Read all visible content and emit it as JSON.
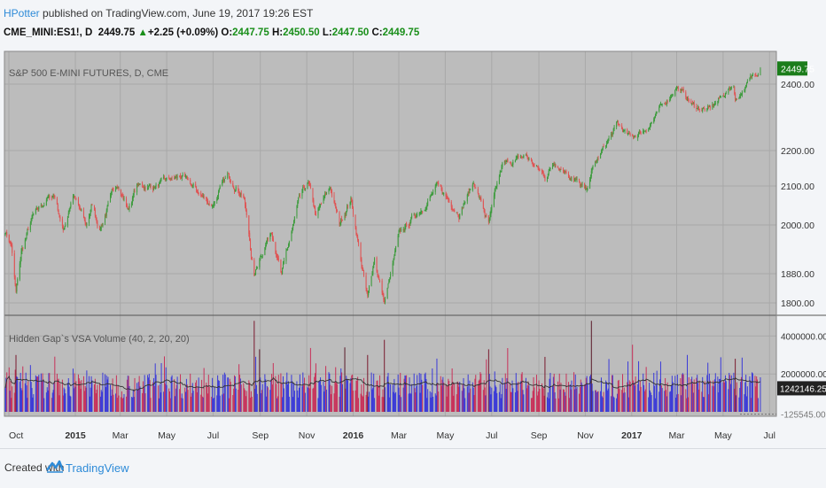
{
  "header": {
    "author": "HPotter",
    "published": "published on TradingView.com, June 19, 2017 19:26 EST",
    "symbol": "CME_MINI:ES1!, D",
    "last": "2449.75",
    "change": "+2.25 (+0.09%)",
    "o_label": "O:",
    "o": "2447.75",
    "h_label": "H:",
    "h": "2450.50",
    "l_label": "L:",
    "l": "2447.50",
    "c_label": "C:",
    "c": "2449.75"
  },
  "colors": {
    "up": "#3c9b3c",
    "down": "#e05252",
    "vol_up": "#3a3ad8",
    "vol_down": "#c8325a",
    "pane_bg": "#bcbcbc",
    "grid": "#a9a9a9",
    "last_tag": "#1b7d1b"
  },
  "footer": {
    "created": "Created with",
    "brand": "TradingView",
    "icon": "tradingview-logo-icon"
  },
  "chart_data": [
    {
      "type": "candlestick",
      "title": "S&P 500 E-MINI FUTURES, D, CME",
      "ylim": [
        1780,
        2470
      ],
      "y_ticks": [
        "2400.00",
        "2200.00",
        "2100.00",
        "2000.00",
        "1880.00",
        "1800.00"
      ],
      "last_price": "2449.75",
      "x_ticks": [
        "Oct",
        "2015",
        "Mar",
        "May",
        "Jul",
        "Sep",
        "Nov",
        "2016",
        "Mar",
        "May",
        "Jul",
        "Sep",
        "Nov",
        "2017",
        "Mar",
        "May",
        "Jul"
      ],
      "x_range": [
        "2014-10-01",
        "2017-07-10"
      ],
      "anchors": [
        [
          "2014-10-01",
          1985
        ],
        [
          "2014-10-09",
          1950
        ],
        [
          "2014-10-15",
          1825
        ],
        [
          "2014-10-22",
          1930
        ],
        [
          "2014-11-05",
          2015
        ],
        [
          "2014-11-25",
          2065
        ],
        [
          "2014-12-05",
          2075
        ],
        [
          "2014-12-16",
          1985
        ],
        [
          "2014-12-29",
          2080
        ],
        [
          "2015-01-15",
          1995
        ],
        [
          "2015-01-23",
          2050
        ],
        [
          "2015-02-02",
          1990
        ],
        [
          "2015-02-25",
          2110
        ],
        [
          "2015-03-11",
          2040
        ],
        [
          "2015-03-23",
          2100
        ],
        [
          "2015-04-15",
          2100
        ],
        [
          "2015-05-20",
          2125
        ],
        [
          "2015-06-10",
          2085
        ],
        [
          "2015-06-29",
          2050
        ],
        [
          "2015-07-20",
          2125
        ],
        [
          "2015-08-10",
          2080
        ],
        [
          "2015-08-24",
          1870
        ],
        [
          "2015-09-01",
          1925
        ],
        [
          "2015-09-16",
          1990
        ],
        [
          "2015-09-29",
          1875
        ],
        [
          "2015-10-22",
          2060
        ],
        [
          "2015-11-03",
          2105
        ],
        [
          "2015-11-13",
          2020
        ],
        [
          "2015-12-02",
          2095
        ],
        [
          "2015-12-14",
          2000
        ],
        [
          "2015-12-29",
          2070
        ],
        [
          "2016-01-20",
          1810
        ],
        [
          "2016-01-29",
          1920
        ],
        [
          "2016-02-11",
          1802
        ],
        [
          "2016-03-01",
          1970
        ],
        [
          "2016-04-20",
          2095
        ],
        [
          "2016-05-19",
          2035
        ],
        [
          "2016-06-08",
          2110
        ],
        [
          "2016-06-27",
          2000
        ],
        [
          "2016-07-15",
          2155
        ],
        [
          "2016-08-15",
          2185
        ],
        [
          "2016-09-09",
          2125
        ],
        [
          "2016-09-22",
          2170
        ],
        [
          "2016-10-14",
          2130
        ],
        [
          "2016-11-03",
          2080
        ],
        [
          "2016-11-09",
          2140
        ],
        [
          "2016-12-13",
          2275
        ],
        [
          "2016-12-30",
          2235
        ],
        [
          "2017-01-20",
          2265
        ],
        [
          "2017-02-15",
          2345
        ],
        [
          "2017-03-01",
          2395
        ],
        [
          "2017-03-24",
          2330
        ],
        [
          "2017-04-13",
          2320
        ],
        [
          "2017-05-15",
          2400
        ],
        [
          "2017-05-17",
          2350
        ],
        [
          "2017-06-09",
          2425
        ],
        [
          "2017-06-19",
          2450
        ]
      ]
    },
    {
      "type": "bar",
      "title": "Hidden Gap`s VSA Volume (40, 2, 20, 20)",
      "ylim": [
        -140000,
        5000000
      ],
      "y_ticks": [
        "4000000.0000",
        "2000000.0000"
      ],
      "last_value": "1242146.2500",
      "min_value": "-125545.0000",
      "avg_level": 1250000,
      "spikes": [
        [
          "2014-10-15",
          3000000
        ],
        [
          "2015-08-24",
          4800000
        ],
        [
          "2015-08-31",
          3300000
        ],
        [
          "2015-12-21",
          3400000
        ],
        [
          "2016-01-20",
          3000000
        ],
        [
          "2016-02-11",
          3800000
        ],
        [
          "2016-06-27",
          3300000
        ],
        [
          "2016-09-09",
          2900000
        ],
        [
          "2016-11-09",
          4800000
        ],
        [
          "2017-05-17",
          2800000
        ]
      ]
    }
  ]
}
